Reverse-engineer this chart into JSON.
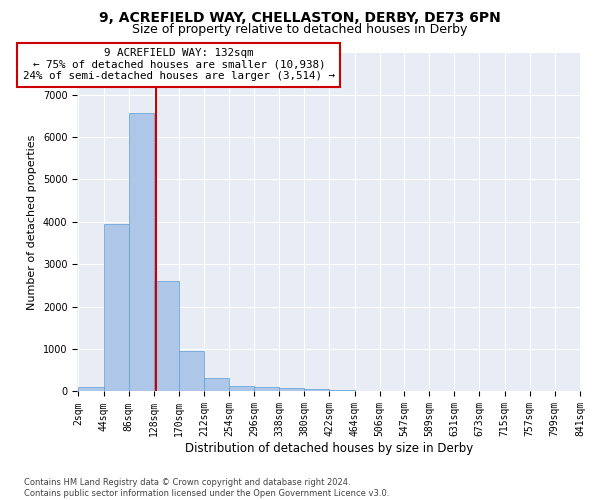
{
  "title": "9, ACREFIELD WAY, CHELLASTON, DERBY, DE73 6PN",
  "subtitle": "Size of property relative to detached houses in Derby",
  "xlabel": "Distribution of detached houses by size in Derby",
  "ylabel": "Number of detached properties",
  "footnote": "Contains HM Land Registry data © Crown copyright and database right 2024.\nContains public sector information licensed under the Open Government Licence v3.0.",
  "bin_edges": [
    2,
    44,
    86,
    128,
    170,
    212,
    254,
    296,
    338,
    380,
    422,
    464,
    506,
    547,
    589,
    631,
    673,
    715,
    757,
    799,
    841
  ],
  "bar_heights": [
    100,
    3960,
    6580,
    2600,
    960,
    310,
    130,
    110,
    75,
    50,
    30,
    20,
    10,
    5,
    3,
    2,
    1,
    1,
    0,
    0
  ],
  "bar_color": "#aec6e8",
  "bar_edgecolor": "#5a9fd4",
  "property_size": 132,
  "property_line_color": "#cc0000",
  "annotation_line1": "9 ACREFIELD WAY: 132sqm",
  "annotation_line2": "← 75% of detached houses are smaller (10,938)",
  "annotation_line3": "24% of semi-detached houses are larger (3,514) →",
  "annotation_box_color": "#cc0000",
  "ylim": [
    0,
    8000
  ],
  "plot_bg_color": "#e8edf5",
  "title_fontsize": 10,
  "subtitle_fontsize": 9,
  "axis_label_fontsize": 8.5,
  "tick_fontsize": 7,
  "ylabel_fontsize": 8,
  "footnote_fontsize": 6
}
